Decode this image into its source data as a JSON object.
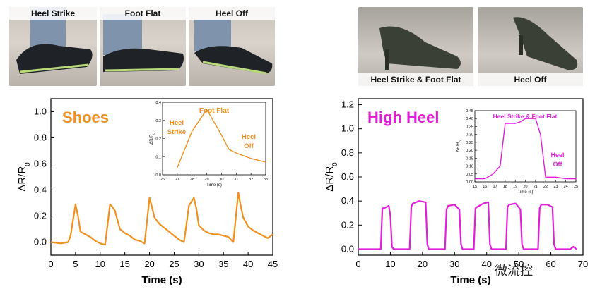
{
  "photos_left": [
    {
      "label": "Heel Strike"
    },
    {
      "label": "Foot Flat"
    },
    {
      "label": "Heel Off"
    }
  ],
  "photos_right": [
    {
      "label": "Heel Strike & Foot Flat"
    },
    {
      "label": "Heel Off"
    }
  ],
  "watermark": "微流控",
  "chart_data": [
    {
      "type": "line",
      "title": "Shoes",
      "color": "#f0901e",
      "xlabel": "Time (s)",
      "ylabel": "ΔR/R",
      "ylabel_sub": "0",
      "xlim": [
        0,
        45
      ],
      "ylim": [
        -0.1,
        1.1
      ],
      "xticks": [
        0,
        5,
        10,
        15,
        20,
        25,
        30,
        35,
        40,
        45
      ],
      "yticks": [
        "0.0",
        "0.2",
        "0.4",
        "0.6",
        "0.8",
        "1.0"
      ],
      "x": [
        0,
        2,
        3.5,
        4,
        5,
        5.5,
        6,
        7,
        8,
        9,
        10,
        11,
        12,
        12.5,
        13,
        14,
        15,
        16,
        17,
        18,
        19,
        20,
        20.5,
        21,
        22,
        23,
        24,
        25,
        26,
        27,
        28,
        29,
        29.5,
        30,
        31,
        32,
        33,
        34,
        35,
        36,
        37,
        38,
        38.5,
        39,
        40,
        41,
        42,
        43,
        44,
        45
      ],
      "y": [
        0.0,
        -0.01,
        0.0,
        0.05,
        0.29,
        0.2,
        0.08,
        0.06,
        0.04,
        0.01,
        -0.01,
        -0.02,
        0.29,
        0.27,
        0.24,
        0.1,
        0.07,
        0.05,
        0.02,
        0.01,
        -0.01,
        0.34,
        0.27,
        0.19,
        0.14,
        0.11,
        0.08,
        0.05,
        0.02,
        0.0,
        0.28,
        0.34,
        0.26,
        0.13,
        0.09,
        0.07,
        0.06,
        0.06,
        0.05,
        0.04,
        0.0,
        0.38,
        0.28,
        0.19,
        0.12,
        0.09,
        0.07,
        0.05,
        0.03,
        0.06
      ],
      "inset": {
        "xlim": [
          26,
          33
        ],
        "ylim": [
          0.0,
          0.4
        ],
        "xticks": [
          "26",
          "27",
          "28",
          "29",
          "30",
          "31",
          "32",
          "33"
        ],
        "yticks": [
          "0.0",
          "0.1",
          "0.2",
          "0.3",
          "0.4"
        ],
        "xlabel": "Time (s)",
        "ylabel": "ΔR/R",
        "ylabel_sub": "0",
        "x": [
          27,
          28,
          29,
          30,
          30.5,
          31,
          32,
          33
        ],
        "y": [
          0.04,
          0.24,
          0.36,
          0.22,
          0.14,
          0.12,
          0.09,
          0.07
        ],
        "annotations": [
          "Foot Flat",
          "Heel",
          "Strike",
          "Heel",
          "Off"
        ]
      }
    },
    {
      "type": "line",
      "title": "High Heel",
      "color": "#e020d8",
      "xlabel": "Time (s)",
      "ylabel": "ΔR/R",
      "ylabel_sub": "0",
      "xlim": [
        0,
        70
      ],
      "ylim": [
        -0.05,
        1.25
      ],
      "xticks": [
        0,
        10,
        20,
        30,
        40,
        50,
        60,
        70
      ],
      "yticks": [
        "0.0",
        "0.2",
        "0.4",
        "0.6",
        "0.8",
        "1.0",
        "1.2"
      ],
      "x": [
        0,
        7,
        7.5,
        8,
        9.5,
        10,
        10.5,
        11,
        16,
        16.5,
        17,
        19,
        21,
        21.5,
        22,
        27,
        27.5,
        28,
        30,
        31.5,
        32,
        32.5,
        36,
        36.5,
        37,
        39,
        40.5,
        41,
        41.5,
        46,
        46.5,
        47,
        49,
        50.5,
        51,
        51.5,
        56,
        56.5,
        57,
        59,
        60.5,
        61,
        61.5,
        66,
        67,
        68
      ],
      "y": [
        0.0,
        0.0,
        0.34,
        0.34,
        0.36,
        0.28,
        0.02,
        0.0,
        0.0,
        0.35,
        0.38,
        0.4,
        0.39,
        0.04,
        0.0,
        0.0,
        0.33,
        0.36,
        0.37,
        0.33,
        0.04,
        0.0,
        0.0,
        0.34,
        0.35,
        0.38,
        0.39,
        0.04,
        0.0,
        0.0,
        0.35,
        0.37,
        0.38,
        0.33,
        0.04,
        0.0,
        0.0,
        0.34,
        0.37,
        0.37,
        0.35,
        0.04,
        0.0,
        0.0,
        0.02,
        0.0
      ],
      "inset": {
        "xlim": [
          15,
          25
        ],
        "ylim": [
          0.0,
          0.45
        ],
        "xticks": [
          "15",
          "16",
          "17",
          "18",
          "19",
          "20",
          "21",
          "22",
          "23",
          "24",
          "25"
        ],
        "yticks": [
          "0.00",
          "0.05",
          "0.10",
          "0.15",
          "0.20",
          "0.25",
          "0.30",
          "0.35",
          "0.40",
          "0.45"
        ],
        "xlabel": "Time (s)",
        "ylabel": "ΔR/R",
        "ylabel_sub": "0",
        "x": [
          15,
          16,
          16.8,
          17.5,
          18,
          19,
          19.5,
          20,
          21,
          21.5,
          22,
          23,
          24,
          25
        ],
        "y": [
          0.02,
          0.02,
          0.05,
          0.1,
          0.37,
          0.37,
          0.38,
          0.4,
          0.4,
          0.3,
          0.03,
          0.03,
          0.02,
          0.02
        ],
        "annotations": [
          "Heel Strike & Foot Flat",
          "Heel",
          "Off"
        ]
      }
    }
  ]
}
